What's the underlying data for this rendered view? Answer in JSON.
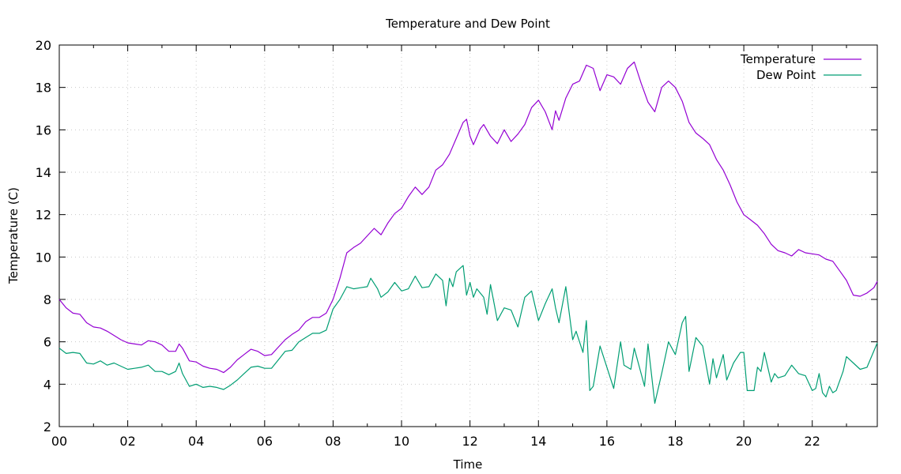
{
  "chart_data": {
    "type": "line",
    "title": "Temperature and Dew Point",
    "xlabel": "Time",
    "ylabel": "Temperature (C)",
    "xlim": [
      0,
      23.9
    ],
    "ylim": [
      2,
      20
    ],
    "grid": true,
    "legend_position": "top-right",
    "x_ticks": [
      0,
      2,
      4,
      6,
      8,
      10,
      12,
      14,
      16,
      18,
      20,
      22
    ],
    "x_tick_labels": [
      "00",
      "02",
      "04",
      "06",
      "08",
      "10",
      "12",
      "14",
      "16",
      "18",
      "20",
      "22"
    ],
    "y_ticks": [
      2,
      4,
      6,
      8,
      10,
      12,
      14,
      16,
      18,
      20
    ],
    "y_tick_labels": [
      "2",
      "4",
      "6",
      "8",
      "10",
      "12",
      "14",
      "16",
      "18",
      "20"
    ],
    "series": [
      {
        "name": "Temperature",
        "color": "#9400d3",
        "points": [
          [
            0.0,
            8.0
          ],
          [
            0.2,
            7.6
          ],
          [
            0.4,
            7.35
          ],
          [
            0.6,
            7.3
          ],
          [
            0.8,
            6.9
          ],
          [
            1.0,
            6.7
          ],
          [
            1.2,
            6.65
          ],
          [
            1.4,
            6.5
          ],
          [
            1.6,
            6.3
          ],
          [
            1.8,
            6.1
          ],
          [
            2.0,
            5.95
          ],
          [
            2.2,
            5.9
          ],
          [
            2.4,
            5.85
          ],
          [
            2.6,
            6.05
          ],
          [
            2.8,
            6.0
          ],
          [
            3.0,
            5.85
          ],
          [
            3.2,
            5.55
          ],
          [
            3.4,
            5.55
          ],
          [
            3.5,
            5.9
          ],
          [
            3.6,
            5.7
          ],
          [
            3.8,
            5.1
          ],
          [
            4.0,
            5.05
          ],
          [
            4.2,
            4.85
          ],
          [
            4.4,
            4.75
          ],
          [
            4.6,
            4.7
          ],
          [
            4.8,
            4.55
          ],
          [
            5.0,
            4.8
          ],
          [
            5.2,
            5.15
          ],
          [
            5.4,
            5.4
          ],
          [
            5.6,
            5.65
          ],
          [
            5.8,
            5.55
          ],
          [
            6.0,
            5.35
          ],
          [
            6.2,
            5.4
          ],
          [
            6.4,
            5.75
          ],
          [
            6.6,
            6.1
          ],
          [
            6.8,
            6.35
          ],
          [
            7.0,
            6.55
          ],
          [
            7.2,
            6.95
          ],
          [
            7.4,
            7.15
          ],
          [
            7.6,
            7.15
          ],
          [
            7.8,
            7.35
          ],
          [
            8.0,
            8.0
          ],
          [
            8.2,
            9.0
          ],
          [
            8.4,
            10.2
          ],
          [
            8.6,
            10.45
          ],
          [
            8.8,
            10.65
          ],
          [
            9.0,
            11.0
          ],
          [
            9.2,
            11.35
          ],
          [
            9.4,
            11.05
          ],
          [
            9.6,
            11.6
          ],
          [
            9.8,
            12.05
          ],
          [
            10.0,
            12.3
          ],
          [
            10.2,
            12.85
          ],
          [
            10.4,
            13.3
          ],
          [
            10.6,
            12.95
          ],
          [
            10.8,
            13.3
          ],
          [
            11.0,
            14.1
          ],
          [
            11.2,
            14.35
          ],
          [
            11.4,
            14.85
          ],
          [
            11.6,
            15.6
          ],
          [
            11.8,
            16.35
          ],
          [
            11.9,
            16.5
          ],
          [
            12.0,
            15.7
          ],
          [
            12.1,
            15.3
          ],
          [
            12.3,
            16.05
          ],
          [
            12.4,
            16.25
          ],
          [
            12.6,
            15.7
          ],
          [
            12.8,
            15.35
          ],
          [
            13.0,
            16.0
          ],
          [
            13.2,
            15.45
          ],
          [
            13.4,
            15.8
          ],
          [
            13.6,
            16.25
          ],
          [
            13.8,
            17.05
          ],
          [
            14.0,
            17.4
          ],
          [
            14.2,
            16.85
          ],
          [
            14.4,
            16.0
          ],
          [
            14.5,
            16.9
          ],
          [
            14.6,
            16.45
          ],
          [
            14.8,
            17.5
          ],
          [
            15.0,
            18.15
          ],
          [
            15.2,
            18.3
          ],
          [
            15.4,
            19.05
          ],
          [
            15.6,
            18.9
          ],
          [
            15.8,
            17.85
          ],
          [
            16.0,
            18.6
          ],
          [
            16.2,
            18.5
          ],
          [
            16.4,
            18.15
          ],
          [
            16.6,
            18.9
          ],
          [
            16.8,
            19.2
          ],
          [
            17.0,
            18.2
          ],
          [
            17.2,
            17.3
          ],
          [
            17.4,
            16.85
          ],
          [
            17.6,
            18.0
          ],
          [
            17.8,
            18.3
          ],
          [
            18.0,
            18.0
          ],
          [
            18.2,
            17.35
          ],
          [
            18.4,
            16.35
          ],
          [
            18.6,
            15.85
          ],
          [
            18.8,
            15.6
          ],
          [
            19.0,
            15.3
          ],
          [
            19.2,
            14.6
          ],
          [
            19.4,
            14.1
          ],
          [
            19.6,
            13.4
          ],
          [
            19.8,
            12.6
          ],
          [
            20.0,
            12.0
          ],
          [
            20.2,
            11.75
          ],
          [
            20.4,
            11.5
          ],
          [
            20.6,
            11.1
          ],
          [
            20.8,
            10.6
          ],
          [
            21.0,
            10.3
          ],
          [
            21.2,
            10.2
          ],
          [
            21.4,
            10.05
          ],
          [
            21.6,
            10.35
          ],
          [
            21.8,
            10.2
          ],
          [
            22.0,
            10.15
          ],
          [
            22.2,
            10.1
          ],
          [
            22.4,
            9.9
          ],
          [
            22.6,
            9.8
          ],
          [
            22.8,
            9.35
          ],
          [
            23.0,
            8.9
          ],
          [
            23.2,
            8.2
          ],
          [
            23.4,
            8.15
          ],
          [
            23.6,
            8.3
          ],
          [
            23.8,
            8.55
          ],
          [
            23.9,
            8.85
          ]
        ]
      },
      {
        "name": "Dew Point",
        "color": "#009e73",
        "points": [
          [
            0.0,
            5.7
          ],
          [
            0.2,
            5.45
          ],
          [
            0.4,
            5.5
          ],
          [
            0.6,
            5.45
          ],
          [
            0.8,
            5.0
          ],
          [
            1.0,
            4.95
          ],
          [
            1.2,
            5.1
          ],
          [
            1.4,
            4.9
          ],
          [
            1.6,
            5.0
          ],
          [
            1.8,
            4.85
          ],
          [
            2.0,
            4.7
          ],
          [
            2.2,
            4.75
          ],
          [
            2.4,
            4.8
          ],
          [
            2.6,
            4.9
          ],
          [
            2.8,
            4.6
          ],
          [
            3.0,
            4.6
          ],
          [
            3.2,
            4.45
          ],
          [
            3.4,
            4.6
          ],
          [
            3.5,
            5.0
          ],
          [
            3.6,
            4.5
          ],
          [
            3.8,
            3.9
          ],
          [
            4.0,
            4.0
          ],
          [
            4.2,
            3.85
          ],
          [
            4.4,
            3.9
          ],
          [
            4.6,
            3.85
          ],
          [
            4.8,
            3.75
          ],
          [
            5.0,
            3.95
          ],
          [
            5.2,
            4.2
          ],
          [
            5.4,
            4.5
          ],
          [
            5.6,
            4.8
          ],
          [
            5.8,
            4.85
          ],
          [
            6.0,
            4.75
          ],
          [
            6.2,
            4.75
          ],
          [
            6.4,
            5.15
          ],
          [
            6.6,
            5.55
          ],
          [
            6.8,
            5.6
          ],
          [
            7.0,
            6.0
          ],
          [
            7.2,
            6.2
          ],
          [
            7.4,
            6.4
          ],
          [
            7.6,
            6.4
          ],
          [
            7.8,
            6.55
          ],
          [
            8.0,
            7.55
          ],
          [
            8.2,
            8.0
          ],
          [
            8.4,
            8.6
          ],
          [
            8.6,
            8.5
          ],
          [
            8.8,
            8.55
          ],
          [
            9.0,
            8.6
          ],
          [
            9.1,
            9.0
          ],
          [
            9.3,
            8.5
          ],
          [
            9.4,
            8.1
          ],
          [
            9.6,
            8.35
          ],
          [
            9.8,
            8.8
          ],
          [
            10.0,
            8.4
          ],
          [
            10.2,
            8.5
          ],
          [
            10.4,
            9.1
          ],
          [
            10.6,
            8.55
          ],
          [
            10.8,
            8.6
          ],
          [
            11.0,
            9.2
          ],
          [
            11.2,
            8.9
          ],
          [
            11.3,
            7.7
          ],
          [
            11.4,
            9.0
          ],
          [
            11.5,
            8.6
          ],
          [
            11.6,
            9.3
          ],
          [
            11.8,
            9.6
          ],
          [
            11.9,
            8.2
          ],
          [
            12.0,
            8.8
          ],
          [
            12.1,
            8.1
          ],
          [
            12.2,
            8.5
          ],
          [
            12.4,
            8.1
          ],
          [
            12.5,
            7.3
          ],
          [
            12.6,
            8.7
          ],
          [
            12.8,
            7.0
          ],
          [
            13.0,
            7.6
          ],
          [
            13.2,
            7.5
          ],
          [
            13.4,
            6.7
          ],
          [
            13.6,
            8.1
          ],
          [
            13.8,
            8.4
          ],
          [
            14.0,
            7.0
          ],
          [
            14.2,
            7.8
          ],
          [
            14.4,
            8.5
          ],
          [
            14.5,
            7.6
          ],
          [
            14.6,
            6.9
          ],
          [
            14.8,
            8.6
          ],
          [
            15.0,
            6.1
          ],
          [
            15.1,
            6.5
          ],
          [
            15.3,
            5.5
          ],
          [
            15.4,
            7.0
          ],
          [
            15.5,
            3.7
          ],
          [
            15.6,
            3.9
          ],
          [
            15.8,
            5.8
          ],
          [
            16.0,
            4.8
          ],
          [
            16.2,
            3.8
          ],
          [
            16.4,
            6.0
          ],
          [
            16.5,
            4.9
          ],
          [
            16.7,
            4.7
          ],
          [
            16.8,
            5.7
          ],
          [
            17.0,
            4.5
          ],
          [
            17.1,
            3.9
          ],
          [
            17.2,
            5.9
          ],
          [
            17.4,
            3.1
          ],
          [
            17.6,
            4.5
          ],
          [
            17.8,
            6.0
          ],
          [
            18.0,
            5.4
          ],
          [
            18.2,
            6.9
          ],
          [
            18.3,
            7.2
          ],
          [
            18.4,
            4.6
          ],
          [
            18.6,
            6.2
          ],
          [
            18.7,
            6.0
          ],
          [
            18.8,
            5.8
          ],
          [
            19.0,
            4.0
          ],
          [
            19.1,
            5.2
          ],
          [
            19.2,
            4.3
          ],
          [
            19.4,
            5.4
          ],
          [
            19.5,
            4.2
          ],
          [
            19.7,
            5.0
          ],
          [
            19.9,
            5.5
          ],
          [
            20.0,
            5.5
          ],
          [
            20.1,
            3.7
          ],
          [
            20.3,
            3.7
          ],
          [
            20.4,
            4.8
          ],
          [
            20.5,
            4.6
          ],
          [
            20.6,
            5.5
          ],
          [
            20.8,
            4.1
          ],
          [
            20.9,
            4.5
          ],
          [
            21.0,
            4.3
          ],
          [
            21.2,
            4.4
          ],
          [
            21.4,
            4.9
          ],
          [
            21.6,
            4.5
          ],
          [
            21.8,
            4.4
          ],
          [
            22.0,
            3.7
          ],
          [
            22.1,
            3.8
          ],
          [
            22.2,
            4.5
          ],
          [
            22.3,
            3.6
          ],
          [
            22.4,
            3.4
          ],
          [
            22.5,
            3.9
          ],
          [
            22.6,
            3.6
          ],
          [
            22.7,
            3.7
          ],
          [
            22.9,
            4.6
          ],
          [
            23.0,
            5.3
          ],
          [
            23.2,
            5.0
          ],
          [
            23.4,
            4.7
          ],
          [
            23.6,
            4.8
          ],
          [
            23.9,
            5.95
          ]
        ]
      }
    ]
  }
}
